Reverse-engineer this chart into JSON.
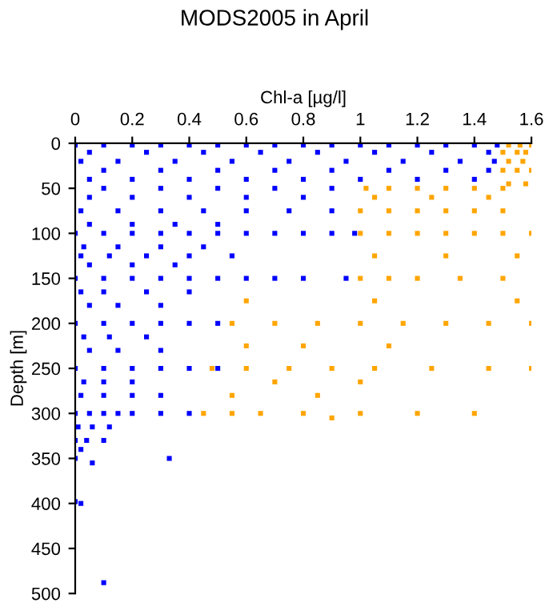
{
  "chart_data": {
    "type": "scatter",
    "title": "MODS2005 in April",
    "xlabel": "Chl-a [µg/l]",
    "ylabel": "Depth [m]",
    "xlim": [
      0,
      1.6
    ],
    "xticks": [
      0,
      0.2,
      0.4,
      0.6,
      0.8,
      1,
      1.2,
      1.4,
      1.6
    ],
    "ylim": [
      500,
      0
    ],
    "yticks": [
      0,
      50,
      100,
      150,
      200,
      250,
      300,
      350,
      400,
      450,
      500
    ],
    "grid": false,
    "marker": "square",
    "series": [
      {
        "color": "#0000ff",
        "x": [
          0,
          0.1,
          0.2,
          0.3,
          0.4,
          0.5,
          0.6,
          0.7,
          0.8,
          0.9,
          1.0,
          1.1,
          1.2,
          1.3,
          1.4,
          1.48,
          0.05,
          0.25,
          0.45,
          0.65,
          0.85,
          1.05,
          1.25,
          1.45,
          0.02,
          0.15,
          0.35,
          0.55,
          0.75,
          0.95,
          1.15,
          1.35,
          1.47,
          0.1,
          0.3,
          0.5,
          0.7,
          0.9,
          1.1,
          1.3,
          1.45,
          0.05,
          0.2,
          0.4,
          0.6,
          0.8,
          1.0,
          1.2,
          1.4,
          0.1,
          0.3,
          0.5,
          0.7,
          0.9,
          0.05,
          0.2,
          0.4,
          0.6,
          0.8,
          0.02,
          0.15,
          0.3,
          0.45,
          0.6,
          0.75,
          0.9,
          0.05,
          0.2,
          0.35,
          0.5,
          0,
          0.1,
          0.2,
          0.3,
          0.4,
          0.5,
          0.6,
          0.7,
          0.8,
          0.9,
          0.98,
          0.03,
          0.15,
          0.3,
          0.45,
          0.02,
          0.12,
          0.25,
          0.4,
          0.55,
          0.05,
          0.2,
          0.35,
          0,
          0.1,
          0.2,
          0.3,
          0.4,
          0.5,
          0.6,
          0.7,
          0.8,
          0.95,
          0.02,
          0.1,
          0.25,
          0.4,
          0.05,
          0.15,
          0.3,
          0,
          0.1,
          0.2,
          0.3,
          0.4,
          0.5,
          0.03,
          0.12,
          0.25,
          0.05,
          0.15,
          0.3,
          0,
          0.1,
          0.2,
          0.3,
          0.4,
          0.5,
          0.03,
          0.1,
          0.2,
          0.02,
          0.1,
          0.2,
          0.3,
          0,
          0.05,
          0.1,
          0.15,
          0.2,
          0.3,
          0.4,
          0.01,
          0.06,
          0.12,
          0,
          0.04,
          0.1,
          0.02,
          0,
          0.33,
          0.06,
          0,
          0.02,
          0.1
        ],
        "values": [
          2,
          2,
          2,
          2,
          2,
          2,
          2,
          2,
          2,
          2,
          2,
          2,
          2,
          2,
          2,
          2,
          10,
          10,
          10,
          10,
          10,
          10,
          10,
          10,
          20,
          20,
          20,
          20,
          20,
          20,
          20,
          20,
          20,
          30,
          30,
          30,
          30,
          30,
          30,
          30,
          30,
          40,
          40,
          40,
          40,
          40,
          40,
          40,
          40,
          50,
          50,
          50,
          50,
          50,
          60,
          60,
          60,
          60,
          60,
          75,
          75,
          75,
          75,
          75,
          75,
          75,
          90,
          90,
          90,
          90,
          100,
          100,
          100,
          100,
          100,
          100,
          100,
          100,
          100,
          100,
          100,
          115,
          115,
          115,
          115,
          125,
          125,
          125,
          125,
          125,
          135,
          135,
          135,
          150,
          150,
          150,
          150,
          150,
          150,
          150,
          150,
          150,
          150,
          165,
          165,
          165,
          165,
          180,
          180,
          180,
          200,
          200,
          200,
          200,
          200,
          200,
          215,
          215,
          215,
          230,
          230,
          230,
          250,
          250,
          250,
          250,
          250,
          250,
          265,
          265,
          265,
          280,
          280,
          280,
          280,
          300,
          300,
          300,
          300,
          300,
          300,
          300,
          315,
          315,
          315,
          330,
          330,
          330,
          340,
          350,
          350,
          355,
          398,
          400,
          488
        ]
      },
      {
        "color": "#ffa500",
        "x": [
          1.52,
          1.56,
          1.6,
          1.5,
          1.55,
          1.58,
          1.52,
          1.57,
          1.5,
          1.55,
          1.6,
          1.52,
          1.58,
          1.02,
          1.1,
          1.2,
          1.3,
          1.4,
          1.5,
          1.05,
          1.25,
          1.45,
          1.0,
          1.1,
          1.2,
          1.3,
          1.4,
          1.5,
          1.0,
          1.1,
          1.2,
          1.3,
          1.4,
          1.5,
          1.6,
          1.05,
          1.3,
          1.55,
          1.0,
          1.1,
          1.2,
          1.35,
          1.5,
          0.6,
          1.05,
          1.55,
          0.55,
          0.7,
          0.85,
          1.0,
          1.15,
          1.3,
          1.45,
          1.6,
          0.6,
          0.8,
          1.1,
          0.48,
          0.6,
          0.75,
          0.9,
          1.05,
          1.25,
          1.45,
          1.6,
          0.7,
          1.0,
          0.55,
          0.85,
          0.45,
          0.55,
          0.65,
          0.8,
          1.0,
          1.2,
          1.4,
          0.9
        ],
        "values": [
          2,
          2,
          2,
          10,
          10,
          10,
          20,
          20,
          30,
          30,
          30,
          45,
          45,
          50,
          50,
          50,
          50,
          50,
          50,
          60,
          60,
          60,
          75,
          75,
          75,
          75,
          75,
          75,
          100,
          100,
          100,
          100,
          100,
          100,
          100,
          125,
          125,
          125,
          150,
          150,
          150,
          150,
          150,
          175,
          175,
          175,
          200,
          200,
          200,
          200,
          200,
          200,
          200,
          200,
          225,
          225,
          225,
          250,
          250,
          250,
          250,
          250,
          250,
          250,
          250,
          265,
          265,
          280,
          280,
          300,
          300,
          300,
          300,
          300,
          300,
          300,
          305
        ]
      }
    ]
  }
}
